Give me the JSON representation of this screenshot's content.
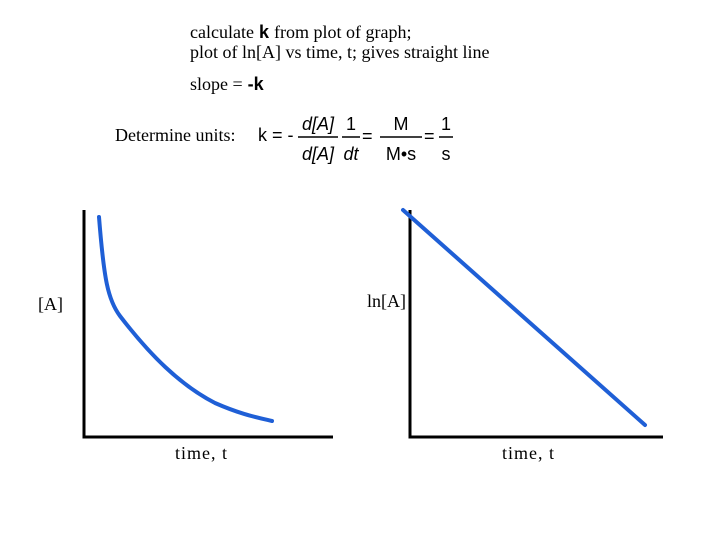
{
  "header": {
    "line1": {
      "before": "calculate",
      "k": "k",
      "after": "from plot of graph;"
    },
    "line2": "plot of ln[A] vs time, t; gives straight line",
    "slope": {
      "label": "slope =",
      "value": "-k"
    }
  },
  "units": {
    "label": "Determine units:",
    "lhs": "k = -",
    "frac1": {
      "num": "d[A]",
      "den": "d[A]"
    },
    "frac2": {
      "num": "1",
      "den": "dt"
    },
    "eq1": "=",
    "frac3": {
      "num": "M",
      "den": "M•s"
    },
    "eq2": "=",
    "frac4": {
      "num": "1",
      "den": "s"
    }
  },
  "plots": [
    {
      "y_label": "[A]",
      "x_label": "time, t"
    },
    {
      "y_label": "ln[A]",
      "x_label": "time, t"
    }
  ]
}
